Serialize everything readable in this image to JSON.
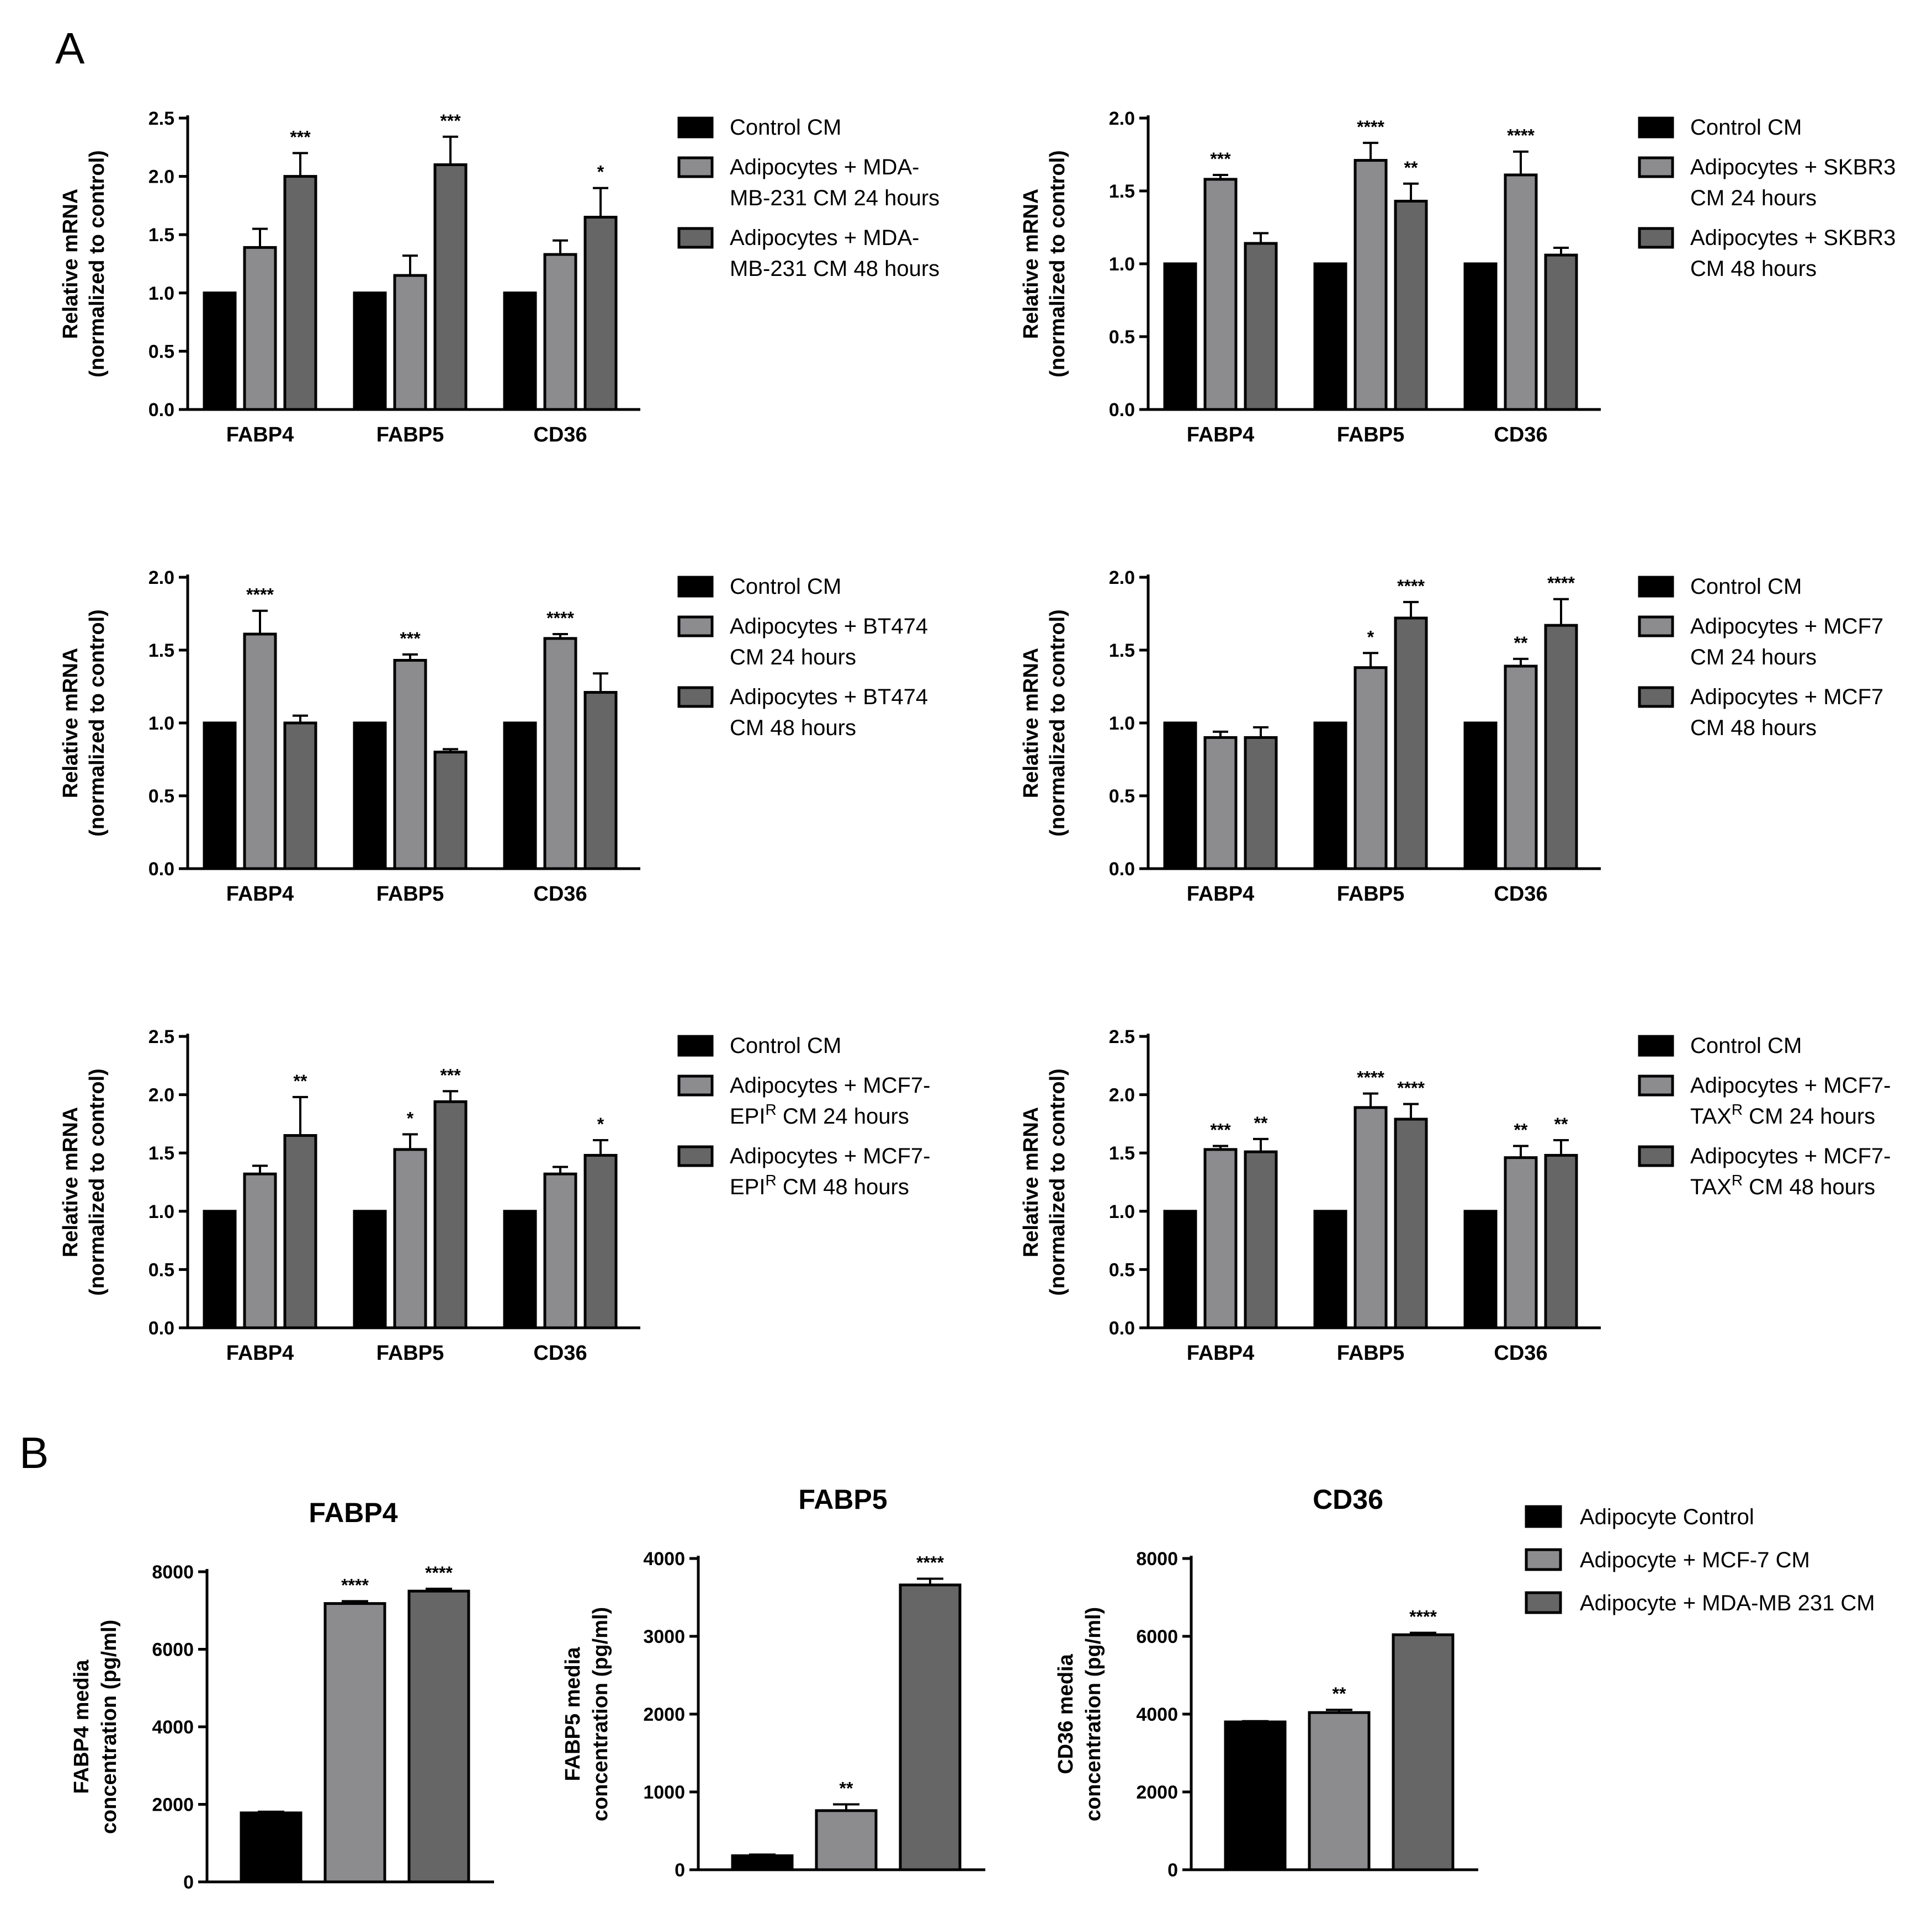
{
  "panel_labels": [
    "A",
    "B"
  ],
  "chart_data": [
    {
      "type": "bar",
      "panel": "A",
      "ylabel": [
        "Relative mRNA",
        "(normalized to control)"
      ],
      "ylim": [
        0,
        2.5
      ],
      "yticks": [
        0.0,
        0.5,
        1.0,
        1.5,
        2.0,
        2.5
      ],
      "categories": [
        "FABP4",
        "FABP5",
        "CD36"
      ],
      "series": [
        {
          "name": "Control CM",
          "legend": [
            "Control CM"
          ],
          "color": "#000000",
          "values": [
            1.0,
            1.0,
            1.0
          ],
          "errors": [
            0.0,
            0.0,
            0.0
          ],
          "sig": [
            "",
            "",
            ""
          ]
        },
        {
          "name": "Adipocytes + MDA-MB-231 CM 24 hours",
          "legend": [
            "Adipocytes + MDA-",
            "MB-231 CM 24 hours"
          ],
          "color": "#8c8c8f",
          "values": [
            1.39,
            1.15,
            1.33
          ],
          "errors": [
            0.16,
            0.17,
            0.12
          ],
          "sig": [
            "",
            "",
            ""
          ]
        },
        {
          "name": "Adipocytes + MDA-MB-231 CM 48 hours",
          "legend": [
            "Adipocytes + MDA-",
            "MB-231 CM 48 hours"
          ],
          "color": "#666666",
          "values": [
            2.0,
            2.1,
            1.65
          ],
          "errors": [
            0.2,
            0.24,
            0.25
          ],
          "sig": [
            "***",
            "***",
            "*"
          ]
        }
      ]
    },
    {
      "type": "bar",
      "panel": "A",
      "ylabel": [
        "Relative mRNA",
        "(normalized to control)"
      ],
      "ylim": [
        0,
        2.0
      ],
      "yticks": [
        0.0,
        0.5,
        1.0,
        1.5,
        2.0
      ],
      "categories": [
        "FABP4",
        "FABP5",
        "CD36"
      ],
      "series": [
        {
          "name": "Control CM",
          "legend": [
            "Control CM"
          ],
          "color": "#000000",
          "values": [
            1.0,
            1.0,
            1.0
          ],
          "errors": [
            0.0,
            0.0,
            0.0
          ],
          "sig": [
            "",
            "",
            ""
          ]
        },
        {
          "name": "Adipocytes + SKBR3 CM 24 hours",
          "legend": [
            "Adipocytes +  SKBR3",
            "CM 24 hours"
          ],
          "color": "#8c8c8f",
          "values": [
            1.58,
            1.71,
            1.61
          ],
          "errors": [
            0.03,
            0.12,
            0.16
          ],
          "sig": [
            "***",
            "****",
            "****"
          ]
        },
        {
          "name": "Adipocytes + SKBR3 CM 48 hours",
          "legend": [
            "Adipocytes +  SKBR3",
            "CM 48 hours"
          ],
          "color": "#666666",
          "values": [
            1.14,
            1.43,
            1.06
          ],
          "errors": [
            0.07,
            0.12,
            0.05
          ],
          "sig": [
            "",
            "**",
            ""
          ]
        }
      ]
    },
    {
      "type": "bar",
      "panel": "A",
      "ylabel": [
        "Relative mRNA",
        "(normalized to control)"
      ],
      "ylim": [
        0,
        2.0
      ],
      "yticks": [
        0.0,
        0.5,
        1.0,
        1.5,
        2.0
      ],
      "categories": [
        "FABP4",
        "FABP5",
        "CD36"
      ],
      "series": [
        {
          "name": "Control CM",
          "legend": [
            "Control CM"
          ],
          "color": "#000000",
          "values": [
            1.0,
            1.0,
            1.0
          ],
          "errors": [
            0.0,
            0.0,
            0.0
          ],
          "sig": [
            "",
            "",
            ""
          ]
        },
        {
          "name": "Adipocytes + BT474 CM 24 hours",
          "legend": [
            "Adipocytes + BT474",
            "CM 24 hours"
          ],
          "color": "#8c8c8f",
          "values": [
            1.61,
            1.43,
            1.58
          ],
          "errors": [
            0.16,
            0.04,
            0.03
          ],
          "sig": [
            "****",
            "***",
            "****"
          ]
        },
        {
          "name": "Adipocytes + BT474 CM 48 hours",
          "legend": [
            "Adipocytes + BT474",
            "CM 48 hours"
          ],
          "color": "#666666",
          "values": [
            1.0,
            0.8,
            1.21
          ],
          "errors": [
            0.05,
            0.02,
            0.13
          ],
          "sig": [
            "",
            "",
            ""
          ]
        }
      ]
    },
    {
      "type": "bar",
      "panel": "A",
      "ylabel": [
        "Relative mRNA",
        "(normalized to control)"
      ],
      "ylim": [
        0,
        2.0
      ],
      "yticks": [
        0.0,
        0.5,
        1.0,
        1.5,
        2.0
      ],
      "categories": [
        "FABP4",
        "FABP5",
        "CD36"
      ],
      "series": [
        {
          "name": "Control CM",
          "legend": [
            "Control CM"
          ],
          "color": "#000000",
          "values": [
            1.0,
            1.0,
            1.0
          ],
          "errors": [
            0.0,
            0.0,
            0.0
          ],
          "sig": [
            "",
            "",
            ""
          ]
        },
        {
          "name": "Adipocytes + MCF7 CM 24 hours",
          "legend": [
            "Adipocytes + MCF7",
            "CM 24 hours"
          ],
          "color": "#8c8c8f",
          "values": [
            0.9,
            1.38,
            1.39
          ],
          "errors": [
            0.04,
            0.1,
            0.05
          ],
          "sig": [
            "",
            "*",
            "**"
          ]
        },
        {
          "name": "Adipocytes + MCF7 CM 48 hours",
          "legend": [
            "Adipocytes + MCF7",
            "CM 48 hours"
          ],
          "color": "#666666",
          "values": [
            0.9,
            1.72,
            1.67
          ],
          "errors": [
            0.07,
            0.11,
            0.18
          ],
          "sig": [
            "",
            "****",
            "****"
          ]
        }
      ]
    },
    {
      "type": "bar",
      "panel": "A",
      "ylabel": [
        "Relative mRNA",
        "(normalized to control)"
      ],
      "ylim": [
        0,
        2.5
      ],
      "yticks": [
        0.0,
        0.5,
        1.0,
        1.5,
        2.0,
        2.5
      ],
      "categories": [
        "FABP4",
        "FABP5",
        "CD36"
      ],
      "series": [
        {
          "name": "Control CM",
          "legend": [
            "Control CM"
          ],
          "color": "#000000",
          "values": [
            1.0,
            1.0,
            1.0
          ],
          "errors": [
            0.0,
            0.0,
            0.0
          ],
          "sig": [
            "",
            "",
            ""
          ]
        },
        {
          "name": "Adipocytes + MCF7-EPIR CM 24 hours",
          "legend": [
            "Adipocytes + MCF7-",
            "EPI|R| CM 24 hours"
          ],
          "color": "#8c8c8f",
          "values": [
            1.32,
            1.53,
            1.32
          ],
          "errors": [
            0.07,
            0.13,
            0.06
          ],
          "sig": [
            "",
            "*",
            ""
          ]
        },
        {
          "name": "Adipocytes + MCF7-EPIR CM 48 hours",
          "legend": [
            "Adipocytes + MCF7-",
            "EPI|R| CM 48 hours"
          ],
          "color": "#666666",
          "values": [
            1.65,
            1.94,
            1.48
          ],
          "errors": [
            0.33,
            0.09,
            0.13
          ],
          "sig": [
            "**",
            "***",
            "*"
          ]
        }
      ]
    },
    {
      "type": "bar",
      "panel": "A",
      "ylabel": [
        "Relative mRNA",
        "(normalized to control)"
      ],
      "ylim": [
        0,
        2.5
      ],
      "yticks": [
        0.0,
        0.5,
        1.0,
        1.5,
        2.0,
        2.5
      ],
      "categories": [
        "FABP4",
        "FABP5",
        "CD36"
      ],
      "series": [
        {
          "name": "Control CM",
          "legend": [
            "Control CM"
          ],
          "color": "#000000",
          "values": [
            1.0,
            1.0,
            1.0
          ],
          "errors": [
            0.0,
            0.0,
            0.0
          ],
          "sig": [
            "",
            "",
            ""
          ]
        },
        {
          "name": "Adipocytes + MCF7-TAXR CM 24 hours",
          "legend": [
            "Adipocytes + MCF7-",
            "TAX|R| CM 24 hours"
          ],
          "color": "#8c8c8f",
          "values": [
            1.53,
            1.89,
            1.46
          ],
          "errors": [
            0.03,
            0.12,
            0.1
          ],
          "sig": [
            "***",
            "****",
            "**"
          ]
        },
        {
          "name": "Adipocytes + MCF7-TAXR CM 48 hours",
          "legend": [
            "Adipocytes + MCF7-",
            "TAX|R| CM 48 hours"
          ],
          "color": "#666666",
          "values": [
            1.51,
            1.79,
            1.48
          ],
          "errors": [
            0.11,
            0.13,
            0.13
          ],
          "sig": [
            "**",
            "****",
            "**"
          ]
        }
      ]
    },
    {
      "type": "bar",
      "panel": "B",
      "title": "FABP4",
      "ylabel": [
        "FABP4 media",
        "concentration (pg/ml)"
      ],
      "ylim": [
        0,
        8000
      ],
      "yticks": [
        0,
        2000,
        4000,
        6000,
        8000
      ],
      "categories": [
        "Adipocyte Control",
        "Adipocyte + MCF-7 CM",
        "Adipocyte + MDA-MB 231 CM"
      ],
      "colors": [
        "#000000",
        "#8c8c8f",
        "#666666"
      ],
      "values": [
        1780,
        7180,
        7500
      ],
      "errors": [
        30,
        60,
        60
      ],
      "sig": [
        "",
        "****",
        "****"
      ]
    },
    {
      "type": "bar",
      "panel": "B",
      "title": "FABP5",
      "ylabel": [
        "FABP5 media",
        "concentration (pg/ml)"
      ],
      "ylim": [
        0,
        4000
      ],
      "yticks": [
        0,
        1000,
        2000,
        3000,
        4000
      ],
      "categories": [
        "Adipocyte Control",
        "Adipocyte + MCF-7 CM",
        "Adipocyte + MDA-MB 231 CM"
      ],
      "colors": [
        "#000000",
        "#8c8c8f",
        "#666666"
      ],
      "values": [
        180,
        760,
        3660
      ],
      "errors": [
        15,
        80,
        80
      ],
      "sig": [
        "",
        "**",
        "****"
      ]
    },
    {
      "type": "bar",
      "panel": "B",
      "title": "CD36",
      "ylabel": [
        "CD36 media",
        "concentration (pg/ml)"
      ],
      "ylim": [
        0,
        8000
      ],
      "yticks": [
        0,
        2000,
        4000,
        6000,
        8000
      ],
      "categories": [
        "Adipocyte Control",
        "Adipocyte + MCF-7 CM",
        "Adipocyte + MDA-MB 231 CM"
      ],
      "colors": [
        "#000000",
        "#8c8c8f",
        "#666666"
      ],
      "values": [
        3800,
        4040,
        6040
      ],
      "errors": [
        20,
        70,
        50
      ],
      "sig": [
        "",
        "**",
        "****"
      ]
    }
  ],
  "legend_b": [
    "Adipocyte Control",
    "Adipocyte + MCF-7 CM",
    "Adipocyte + MDA-MB 231 CM"
  ]
}
